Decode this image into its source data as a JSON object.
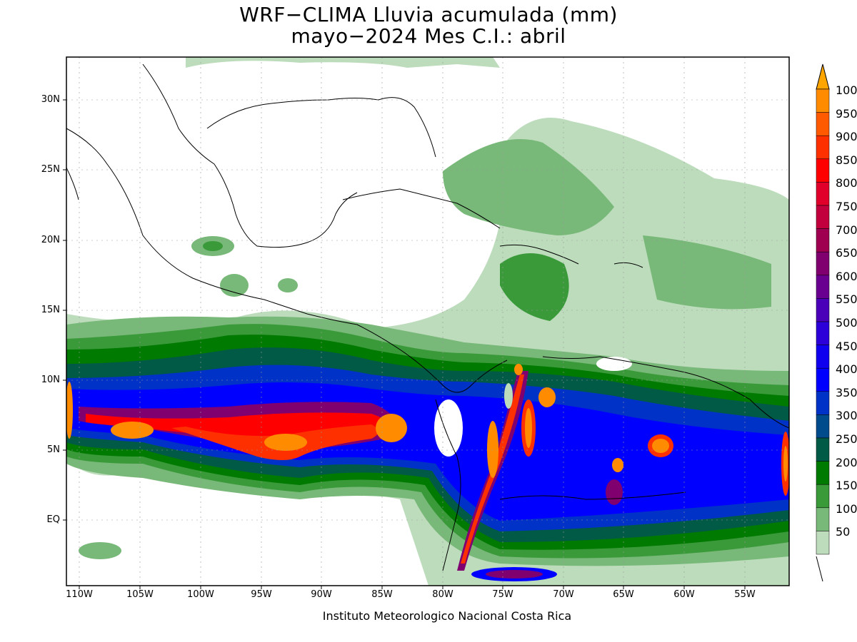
{
  "title_line1": "WRF−CLIMA Lluvia acumulada (mm)",
  "title_line2": "mayo−2024 Mes C.I.: abril",
  "credit": "Instituto Meteorologico Nacional Costa Rica",
  "lat_labels": [
    "30N",
    "25N",
    "20N",
    "15N",
    "10N",
    "5N",
    "EQ"
  ],
  "lon_labels": [
    "110W",
    "105W",
    "100W",
    "95W",
    "90W",
    "85W",
    "80W",
    "75W",
    "70W",
    "65W",
    "60W",
    "55W"
  ],
  "colorbar": {
    "labels": [
      "1000",
      "950",
      "900",
      "850",
      "800",
      "750",
      "700",
      "650",
      "600",
      "550",
      "500",
      "450",
      "400",
      "350",
      "300",
      "250",
      "200",
      "150",
      "100",
      "50"
    ],
    "colors": [
      "#ff8c00",
      "#ff5a00",
      "#ff3000",
      "#ff0000",
      "#e0002a",
      "#c2003e",
      "#a00050",
      "#800070",
      "#6a0090",
      "#4a00b8",
      "#2c00d8",
      "#1000f0",
      "#0000ff",
      "#0032c8",
      "#004b8c",
      "#005a46",
      "#007a00",
      "#3a9a3a",
      "#78b878",
      "#bcdcbc"
    ]
  }
}
